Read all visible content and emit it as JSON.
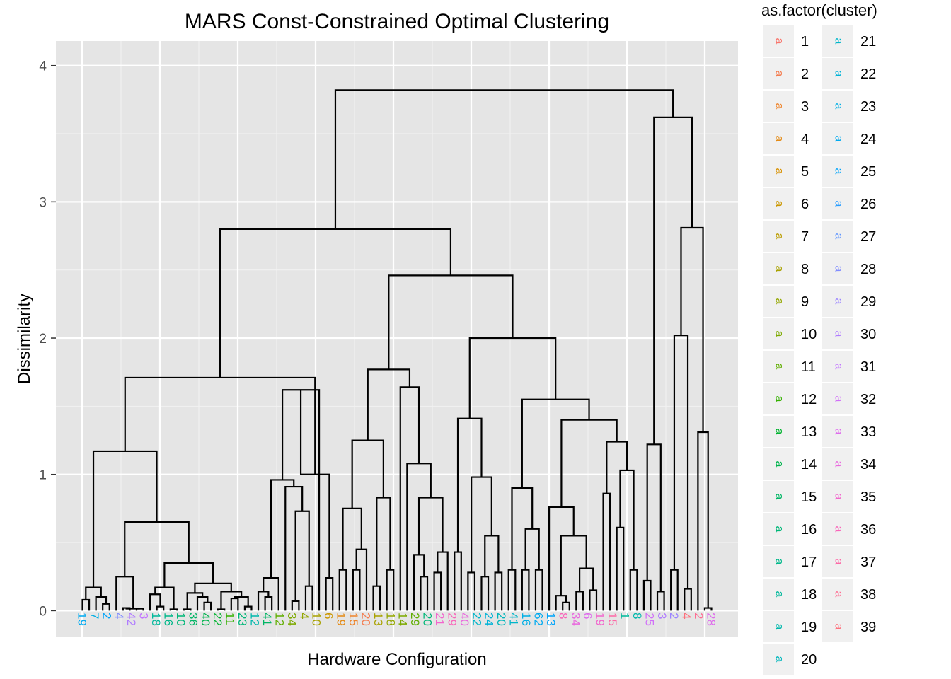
{
  "chart_data": {
    "type": "dendrogram",
    "title": "MARS Const-Constrained Optimal Clustering",
    "xlabel": "Hardware Configuration",
    "ylabel": "Dissimilarity",
    "ylim": [
      -0.19,
      4.18
    ],
    "yticks": [
      0,
      1,
      2,
      3,
      4
    ],
    "grid": true,
    "background": "#e5e5e5",
    "legend": {
      "title": "as.factor(cluster)",
      "placement": "right",
      "key_glyph": "a",
      "entries": [
        "1",
        "2",
        "3",
        "4",
        "5",
        "6",
        "7",
        "8",
        "9",
        "10",
        "11",
        "12",
        "13",
        "14",
        "15",
        "16",
        "17",
        "18",
        "19",
        "20",
        "21",
        "22",
        "23",
        "24",
        "25",
        "26",
        "27",
        "28",
        "29",
        "30",
        "31",
        "32",
        "33",
        "34",
        "35",
        "36",
        "37",
        "38",
        "39"
      ],
      "colors": [
        "#F8766D",
        "#F47D50",
        "#EE852D",
        "#E48B16",
        "#D89100",
        "#CB9700",
        "#BB9D00",
        "#A9A200",
        "#94A700",
        "#7DAA00",
        "#60AE00",
        "#35B100",
        "#00B32F",
        "#00B44D",
        "#00B664",
        "#00B778",
        "#00B88A",
        "#00B89B",
        "#00B8AC",
        "#00B7BC",
        "#00B6CA",
        "#00B3D8",
        "#00AFE5",
        "#00AAF0",
        "#00A4FA",
        "#2B9EFF",
        "#6096FF",
        "#818DFF",
        "#9B84FF",
        "#B07CFF",
        "#C275FF",
        "#D170F8",
        "#DE6CEC",
        "#E969DE",
        "#F266CD",
        "#F966BA",
        "#FD68A6",
        "#FF6C91",
        "#FE707C"
      ]
    },
    "tick_label_groups": [
      {
        "text": "19",
        "color": "#00AAF0"
      },
      {
        "text": "7",
        "color": "#00AFE5"
      },
      {
        "text": "2",
        "color": "#00A4FA"
      },
      {
        "text": "4",
        "color": "#818DFF"
      },
      {
        "text": "42",
        "color": "#B07CFF"
      },
      {
        "text": "3",
        "color": "#C275FF"
      },
      {
        "text": "18",
        "color": "#00B89B"
      },
      {
        "text": "16",
        "color": "#00B88A"
      },
      {
        "text": "10",
        "color": "#00B778"
      },
      {
        "text": "36",
        "color": "#00B664"
      },
      {
        "text": "40",
        "color": "#00B44D"
      },
      {
        "text": "22",
        "color": "#00B32F"
      },
      {
        "text": "11",
        "color": "#35B100"
      },
      {
        "text": "23",
        "color": "#00B778"
      },
      {
        "text": "12",
        "color": "#00B8AC"
      },
      {
        "text": "41",
        "color": "#00B664"
      },
      {
        "text": "12",
        "color": "#60AE00"
      },
      {
        "text": "34",
        "color": "#7DAA00"
      },
      {
        "text": "4",
        "color": "#94A700"
      },
      {
        "text": "10",
        "color": "#A9A200"
      },
      {
        "text": "6",
        "color": "#CB9700"
      },
      {
        "text": "19",
        "color": "#E48B16"
      },
      {
        "text": "15",
        "color": "#EE852D"
      },
      {
        "text": "20",
        "color": "#F47D50"
      },
      {
        "text": "13",
        "color": "#A9A200"
      },
      {
        "text": "18",
        "color": "#94A700"
      },
      {
        "text": "14",
        "color": "#7DAA00"
      },
      {
        "text": "29",
        "color": "#60AE00"
      },
      {
        "text": "20",
        "color": "#00B778"
      },
      {
        "text": "21",
        "color": "#F266CD"
      },
      {
        "text": "29",
        "color": "#F966BA"
      },
      {
        "text": "40",
        "color": "#E969DE"
      },
      {
        "text": "22",
        "color": "#00B6CA"
      },
      {
        "text": "24",
        "color": "#00B3D8"
      },
      {
        "text": "20",
        "color": "#00B7BC"
      },
      {
        "text": "41",
        "color": "#00B6CA"
      },
      {
        "text": "16",
        "color": "#00AFE5"
      },
      {
        "text": "62",
        "color": "#00AAF0"
      },
      {
        "text": "13",
        "color": "#00A4FA"
      },
      {
        "text": "8",
        "color": "#F966BA"
      },
      {
        "text": "34",
        "color": "#E969DE"
      },
      {
        "text": "6",
        "color": "#DE6CEC"
      },
      {
        "text": "19",
        "color": "#F266CD"
      },
      {
        "text": "15",
        "color": "#FD68A6"
      },
      {
        "text": "1",
        "color": "#00B89B"
      },
      {
        "text": "8",
        "color": "#00B8AC"
      },
      {
        "text": "25",
        "color": "#D170F8"
      },
      {
        "text": "3",
        "color": "#B07CFF"
      },
      {
        "text": "2",
        "color": "#9B84FF"
      },
      {
        "text": "4",
        "color": "#FE707C"
      },
      {
        "text": "2",
        "color": "#FF6C91"
      },
      {
        "text": "28",
        "color": "#DE6CEC"
      }
    ],
    "bracket_color": "#000000"
  }
}
